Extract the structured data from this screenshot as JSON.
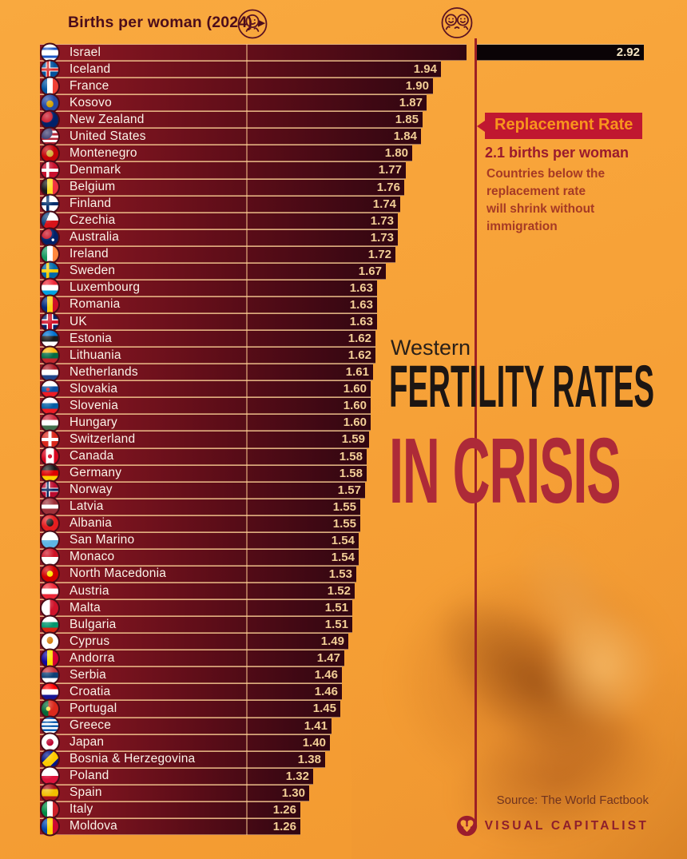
{
  "header": {
    "axis_label": "Births per woman (2024)",
    "arrow_glyph": "▶"
  },
  "callout": {
    "title": "Replacement Rate",
    "subtitle": "2.1 births per woman",
    "body": "Countries below the\nreplacement rate\nwill shrink without\nimmigration"
  },
  "title": {
    "kicker": "Western",
    "line1": "FERTILITY RATES",
    "line2": "IN CRISIS"
  },
  "footer": {
    "source": "Source: The World Factbook",
    "brand": "VISUAL CAPITALIST"
  },
  "colors": {
    "background": "#F7A43A",
    "bar_gradient_start": "#8F1823",
    "bar_gradient_end": "#310611",
    "over_replacement_bar": "#0A0306",
    "value_text": "#F2CE96",
    "country_text": "#FBF4E9",
    "separator_line": "#F7CB92",
    "replacement_line": "#9C2025",
    "callout_bg": "#C01730",
    "callout_text": "#F8951D",
    "dark_red_text": "#9A1A2D",
    "title_black": "#1D1613",
    "title_red": "#AD2A38"
  },
  "chart_data": {
    "type": "bar",
    "orientation": "horizontal",
    "title": "Western Fertility Rates in Crisis",
    "xlabel": "Births per woman (2024)",
    "xlim": [
      0,
      3
    ],
    "axis_markers": [
      1,
      2
    ],
    "replacement_rate": 2.1,
    "replacement_note": "Countries below the replacement rate will shrink without immigration",
    "countries": [
      {
        "name": "Israel",
        "value": 2.92,
        "display": "2.92",
        "flag_css": "linear-gradient(180deg,#fff 0 20%,#1c56c4 20% 34%,#fff 34% 66%,#1c56c4 66% 80%,#fff 80%)"
      },
      {
        "name": "Iceland",
        "value": 1.94,
        "display": "1.94",
        "flag_css": "linear-gradient(0deg,transparent 0 43%,#d72828 43% 57%,transparent 57%),linear-gradient(90deg,transparent 0 32%,#d72828 32% 46%,transparent 46%),linear-gradient(0deg,transparent 0 37%,#fff 37% 63%,transparent 63%),linear-gradient(90deg,transparent 0 26%,#fff 26% 52%,transparent 52%),#02529c"
      },
      {
        "name": "France",
        "value": 1.9,
        "display": "1.90",
        "flag_css": "linear-gradient(90deg,#0055a4 0 33%,#fff 33% 66%,#ef4135 66%)"
      },
      {
        "name": "Kosovo",
        "value": 1.87,
        "display": "1.87",
        "flag_css": "radial-gradient(circle at 50% 55%,#d5a300 0 26%,transparent 30%),#244aa5"
      },
      {
        "name": "New Zealand",
        "value": 1.85,
        "display": "1.85",
        "flag_css": "radial-gradient(circle at 30% 30%,#ca1225 0 35%,transparent 38%),#012169"
      },
      {
        "name": "United States",
        "value": 1.84,
        "display": "1.84",
        "flag_css": "radial-gradient(circle at 26% 26%,#3c3b6e 0 36%,transparent 38%),repeating-linear-gradient(180deg,#b22234 0 14%,#fff 14% 28%)"
      },
      {
        "name": "Montenegro",
        "value": 1.8,
        "display": "1.80",
        "flag_css": "radial-gradient(circle at 50% 50%,#d3ae3b 0 28%,transparent 31%),#c40308"
      },
      {
        "name": "Denmark",
        "value": 1.77,
        "display": "1.77",
        "flag_css": "linear-gradient(0deg,transparent 0 40%,#fff 40% 60%,transparent 60%),linear-gradient(90deg,transparent 0 28%,#fff 28% 46%,transparent 46%),#c8102e"
      },
      {
        "name": "Belgium",
        "value": 1.76,
        "display": "1.76",
        "flag_css": "linear-gradient(90deg,#1a1a1a 0 33%,#fdda24 33% 66%,#ef3340 66%)"
      },
      {
        "name": "Finland",
        "value": 1.74,
        "display": "1.74",
        "flag_css": "linear-gradient(0deg,transparent 0 40%,#002f6c 40% 60%,transparent 60%),linear-gradient(90deg,transparent 0 28%,#002f6c 28% 46%,transparent 46%),#fff"
      },
      {
        "name": "Czechia",
        "value": 1.73,
        "display": "1.73",
        "flag_css": "linear-gradient(113deg,#11457e 0 35%,transparent 35%),linear-gradient(180deg,#fff 0 50%,#d7141a 50%)"
      },
      {
        "name": "Australia",
        "value": 1.73,
        "display": "1.73",
        "flag_css": "radial-gradient(circle at 30% 28%,#ca1225 0 30%,transparent 33%),radial-gradient(circle at 68% 65%,#fff 0 8%,transparent 10%),#012169"
      },
      {
        "name": "Ireland",
        "value": 1.72,
        "display": "1.72",
        "flag_css": "linear-gradient(90deg,#169b62 0 33%,#fff 33% 66%,#ff883e 66%)"
      },
      {
        "name": "Sweden",
        "value": 1.67,
        "display": "1.67",
        "flag_css": "linear-gradient(0deg,transparent 0 40%,#fecc02 40% 60%,transparent 60%),linear-gradient(90deg,transparent 0 28%,#fecc02 28% 46%,transparent 46%),#006aa7"
      },
      {
        "name": "Luxembourg",
        "value": 1.63,
        "display": "1.63",
        "flag_css": "linear-gradient(180deg,#ed2939 0 33%,#fff 33% 66%,#00a2e1 66%)"
      },
      {
        "name": "Romania",
        "value": 1.63,
        "display": "1.63",
        "flag_css": "linear-gradient(90deg,#002b7f 0 33%,#fcd116 33% 66%,#ce1126 66%)"
      },
      {
        "name": "UK",
        "value": 1.63,
        "display": "1.63",
        "flag_css": "linear-gradient(0deg,transparent 0 41%,#cf142b 41% 59%,transparent 59%),linear-gradient(90deg,transparent 0 39%,#cf142b 39% 61%,transparent 61%),linear-gradient(0deg,transparent 0 34%,#fff 34% 66%,transparent 66%),linear-gradient(90deg,transparent 0 31%,#fff 31% 69%,transparent 69%),#012169"
      },
      {
        "name": "Estonia",
        "value": 1.62,
        "display": "1.62",
        "flag_css": "linear-gradient(180deg,#0072ce 0 33%,#1a1a1a 33% 66%,#fff 66%)"
      },
      {
        "name": "Lithuania",
        "value": 1.62,
        "display": "1.62",
        "flag_css": "linear-gradient(180deg,#fdb913 0 33%,#006a44 33% 66%,#c1272d 66%)"
      },
      {
        "name": "Netherlands",
        "value": 1.61,
        "display": "1.61",
        "flag_css": "linear-gradient(180deg,#ae1c28 0 33%,#fff 33% 66%,#21468b 66%)"
      },
      {
        "name": "Slovakia",
        "value": 1.6,
        "display": "1.60",
        "flag_css": "radial-gradient(circle at 38% 52%,#ee1c25 0 12%,transparent 14%),linear-gradient(180deg,#fff 0 33%,#0b4ea2 33% 66%,#ee1c25 66%)"
      },
      {
        "name": "Slovenia",
        "value": 1.6,
        "display": "1.60",
        "flag_css": "linear-gradient(180deg,#fff 0 33%,#005da4 33% 66%,#ed1c24 66%)"
      },
      {
        "name": "Hungary",
        "value": 1.6,
        "display": "1.60",
        "flag_css": "linear-gradient(180deg,#cd2a3e 0 33%,#fff 33% 66%,#436f4d 66%)"
      },
      {
        "name": "Switzerland",
        "value": 1.59,
        "display": "1.59",
        "flag_css": "linear-gradient(0deg,transparent 0 41%,#fff 41% 59%,transparent 59%),linear-gradient(90deg,transparent 0 41%,#fff 41% 59%,transparent 59%),#da291c"
      },
      {
        "name": "Canada",
        "value": 1.58,
        "display": "1.58",
        "flag_css": "radial-gradient(circle at 50% 50%,#d80621 0 16%,transparent 19%),linear-gradient(90deg,#d80621 0 26%,#fff 26% 74%,#d80621 74%)"
      },
      {
        "name": "Germany",
        "value": 1.58,
        "display": "1.58",
        "flag_css": "linear-gradient(180deg,#1a1a1a 0 33%,#dd0000 33% 66%,#ffce00 66%)"
      },
      {
        "name": "Norway",
        "value": 1.57,
        "display": "1.57",
        "flag_css": "linear-gradient(0deg,transparent 0 44%,#00205b 44% 56%,transparent 56%),linear-gradient(90deg,transparent 0 32%,#00205b 32% 44%,transparent 44%),linear-gradient(0deg,transparent 0 38%,#fff 38% 62%,transparent 62%),linear-gradient(90deg,transparent 0 27%,#fff 27% 49%,transparent 49%),#ba0c2f"
      },
      {
        "name": "Latvia",
        "value": 1.55,
        "display": "1.55",
        "flag_css": "linear-gradient(180deg,#9e3039 0 38%,#fff 38% 62%,#9e3039 62%)"
      },
      {
        "name": "Albania",
        "value": 1.55,
        "display": "1.55",
        "flag_css": "radial-gradient(ellipse at 50% 45%,#1a1a1a 0 28%,transparent 32%),#e41e20"
      },
      {
        "name": "San Marino",
        "value": 1.54,
        "display": "1.54",
        "flag_css": "linear-gradient(180deg,#fff 0 50%,#5eb6e4 50%)"
      },
      {
        "name": "Monaco",
        "value": 1.54,
        "display": "1.54",
        "flag_css": "linear-gradient(180deg,#ce1126 0 50%,#fff 50%)"
      },
      {
        "name": "North Macedonia",
        "value": 1.53,
        "display": "1.53",
        "flag_css": "radial-gradient(circle at 50% 50%,#ffe600 0 24%,transparent 27%),#d20000"
      },
      {
        "name": "Austria",
        "value": 1.52,
        "display": "1.52",
        "flag_css": "linear-gradient(180deg,#ed2939 0 33%,#fff 33% 66%,#ed2939 66%)"
      },
      {
        "name": "Malta",
        "value": 1.51,
        "display": "1.51",
        "flag_css": "linear-gradient(90deg,#fff 0 50%,#cf142b 50%)"
      },
      {
        "name": "Bulgaria",
        "value": 1.51,
        "display": "1.51",
        "flag_css": "linear-gradient(180deg,#fff 0 33%,#00966e 33% 66%,#d62612 66%)"
      },
      {
        "name": "Cyprus",
        "value": 1.49,
        "display": "1.49",
        "flag_css": "radial-gradient(ellipse at 50% 42%,#d57800 0 24%,transparent 28%),#fff"
      },
      {
        "name": "Andorra",
        "value": 1.47,
        "display": "1.47",
        "flag_css": "linear-gradient(90deg,#10069f 0 33%,#fedd00 33% 66%,#d50032 66%)"
      },
      {
        "name": "Serbia",
        "value": 1.46,
        "display": "1.46",
        "flag_css": "linear-gradient(180deg,#c6363c 0 33%,#0c4076 33% 66%,#fff 66%)"
      },
      {
        "name": "Croatia",
        "value": 1.46,
        "display": "1.46",
        "flag_css": "radial-gradient(circle at 50% 50%,#fff 0 15%,transparent 18%),linear-gradient(180deg,#ff0000 0 33%,#fff 33% 66%,#171796 66%)"
      },
      {
        "name": "Portugal",
        "value": 1.45,
        "display": "1.45",
        "flag_css": "radial-gradient(circle at 40% 50%,#ffe34c 0 15%,transparent 18%),linear-gradient(90deg,#046a38 0 40%,#da291c 40%)"
      },
      {
        "name": "Greece",
        "value": 1.41,
        "display": "1.41",
        "flag_css": "repeating-linear-gradient(180deg,#0d5eaf 0 12%,#fff 12% 24%)"
      },
      {
        "name": "Japan",
        "value": 1.4,
        "display": "1.40",
        "flag_css": "radial-gradient(circle at 50% 50%,#bc002d 0 28%,transparent 31%),#fff"
      },
      {
        "name": "Bosnia & Herzegovina",
        "value": 1.38,
        "display": "1.38",
        "flag_css": "linear-gradient(135deg,transparent 0 38%,#fecb00 38% 72%,transparent 72%),#001489"
      },
      {
        "name": "Poland",
        "value": 1.32,
        "display": "1.32",
        "flag_css": "linear-gradient(180deg,#fff 0 50%,#dc143c 50%)"
      },
      {
        "name": "Spain",
        "value": 1.3,
        "display": "1.30",
        "flag_css": "linear-gradient(180deg,#aa151b 0 28%,#f1bf00 28% 72%,#aa151b 72%)"
      },
      {
        "name": "Italy",
        "value": 1.26,
        "display": "1.26",
        "flag_css": "linear-gradient(90deg,#008c45 0 33%,#fff 33% 66%,#cd212a 66%)"
      },
      {
        "name": "Moldova",
        "value": 1.26,
        "display": "1.26",
        "flag_css": "linear-gradient(90deg,#0046ae 0 33%,#ffd200 33% 66%,#cc092f 66%)"
      }
    ]
  }
}
